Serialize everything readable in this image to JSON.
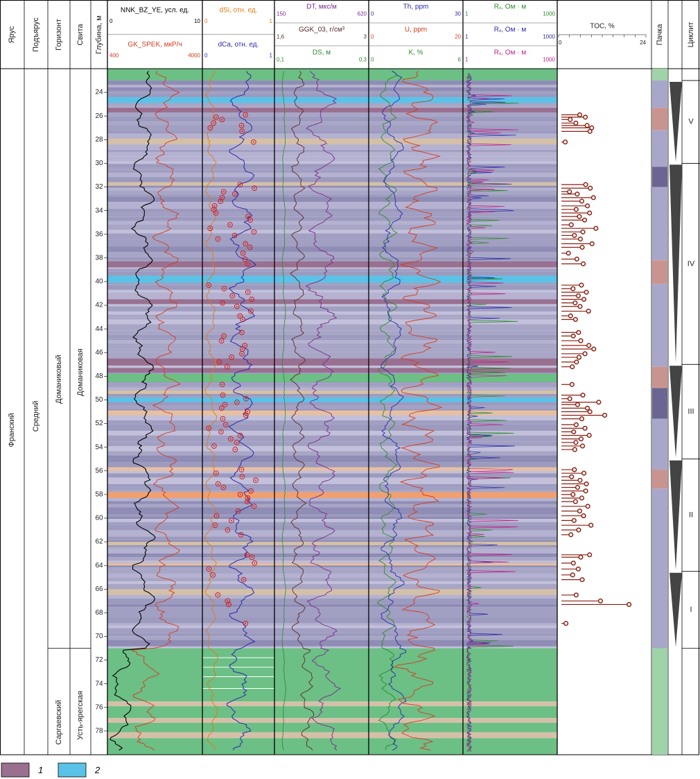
{
  "chart_data": {
    "type": "well-log",
    "depth": {
      "label": "Глубина, м",
      "range": [
        22,
        80
      ],
      "ticks": [
        24,
        26,
        28,
        30,
        32,
        34,
        36,
        38,
        40,
        42,
        44,
        46,
        48,
        50,
        52,
        54,
        56,
        58,
        60,
        62,
        64,
        66,
        68,
        70,
        72,
        74,
        76,
        78
      ]
    },
    "strat": {
      "stage": {
        "header": "Ярус",
        "value": "Франский"
      },
      "substage": {
        "header": "Подъярус",
        "value": "Средний"
      },
      "horizon": {
        "header": "Горизонт",
        "units": [
          {
            "name": "Доманиковый",
            "from": 22,
            "to": 71
          },
          {
            "name": "Саргаевский",
            "from": 71,
            "to": 80
          }
        ]
      },
      "suite": {
        "header": "Свита",
        "units": [
          {
            "name": "Доманиковая",
            "from": 22,
            "to": 71
          },
          {
            "name": "Усть-ярегская",
            "from": 71,
            "to": 80
          }
        ]
      },
      "packs_header": "Пачка",
      "cycles_header": "Циклит",
      "cycles": [
        {
          "name": "V",
          "from": 23,
          "to": 30
        },
        {
          "name": "IV",
          "from": 30,
          "to": 47
        },
        {
          "name": "III",
          "from": 47,
          "to": 55
        },
        {
          "name": "II",
          "from": 55,
          "to": 64.5
        },
        {
          "name": "I",
          "from": 64.5,
          "to": 71
        }
      ]
    },
    "tracks": [
      {
        "name": "gamma",
        "curves": [
          {
            "name": "NNK_BZ_YE, усл. ед.",
            "min": "0",
            "max": "10",
            "color": "#000000"
          },
          {
            "name": "GK_SPEK, мкР/ч",
            "min": "400",
            "max": "4000",
            "color": "#d63a1f"
          }
        ]
      },
      {
        "name": "chemistry",
        "curves": [
          {
            "name": "dSi, отн. ед.",
            "min": "0",
            "max": "1",
            "color": "#e07a10"
          },
          {
            "name": "dCa, отн. ед.",
            "min": "0",
            "max": "1",
            "color": "#2a2aa8"
          }
        ]
      },
      {
        "name": "acoustic",
        "curves": [
          {
            "name": "DT, мкс/м",
            "min": "150",
            "max": "620",
            "color": "#7a2a8a"
          },
          {
            "name": "GGK_03, г/см³",
            "min": "1,6",
            "max": "3",
            "color": "#5a2a2a"
          },
          {
            "name": "DS, м",
            "min": "0,1",
            "max": "0,3",
            "color": "#2a8a2a"
          }
        ]
      },
      {
        "name": "spectral",
        "curves": [
          {
            "name": "Th, ppm",
            "min": "0",
            "max": "30",
            "color": "#2a2aa8"
          },
          {
            "name": "U, ppm",
            "min": "0",
            "max": "20",
            "color": "#d63a1f"
          },
          {
            "name": "K, %",
            "min": "0",
            "max": "6",
            "color": "#2a8a2a"
          }
        ]
      },
      {
        "name": "resistivity",
        "curves": [
          {
            "name": "Rₓ, Ом · м",
            "min": "1",
            "max": "1000",
            "color": "#2a8a2a"
          },
          {
            "name": "Rₓ, Ом · м",
            "min": "1",
            "max": "1000",
            "color": "#2a2aa8"
          },
          {
            "name": "Rₓ, Ом · м",
            "min": "1",
            "max": "1000",
            "color": "#c0208a"
          }
        ]
      }
    ],
    "toc": {
      "label": "TOC, %",
      "min": 0,
      "max": 24,
      "samples": [
        [
          25.9,
          5.2
        ],
        [
          26.1,
          6.8
        ],
        [
          26.3,
          2.5
        ],
        [
          26.6,
          4.1
        ],
        [
          26.8,
          7.3
        ],
        [
          27.0,
          8.6
        ],
        [
          27.3,
          8.1
        ],
        [
          28.2,
          1.1
        ],
        [
          31.8,
          6.9
        ],
        [
          32.1,
          8.2
        ],
        [
          32.4,
          2.3
        ],
        [
          32.6,
          4.5
        ],
        [
          32.9,
          9.1
        ],
        [
          33.2,
          5.8
        ],
        [
          33.6,
          7.4
        ],
        [
          33.9,
          4.2
        ],
        [
          34.2,
          8.0
        ],
        [
          34.5,
          5.1
        ],
        [
          34.8,
          6.6
        ],
        [
          35.2,
          2.8
        ],
        [
          35.5,
          9.8
        ],
        [
          35.8,
          6.1
        ],
        [
          36.1,
          3.7
        ],
        [
          36.4,
          5.4
        ],
        [
          36.8,
          8.7
        ],
        [
          37.1,
          5.9
        ],
        [
          37.6,
          2.0
        ],
        [
          38.1,
          4.4
        ],
        [
          38.5,
          6.2
        ],
        [
          40.3,
          5.7
        ],
        [
          40.6,
          3.3
        ],
        [
          40.9,
          7.1
        ],
        [
          41.2,
          4.8
        ],
        [
          41.5,
          6.4
        ],
        [
          41.8,
          3.9
        ],
        [
          42.1,
          5.3
        ],
        [
          42.5,
          7.7
        ],
        [
          42.9,
          2.6
        ],
        [
          43.2,
          4.0
        ],
        [
          44.3,
          4.9
        ],
        [
          44.6,
          3.4
        ],
        [
          45.0,
          5.5
        ],
        [
          45.4,
          7.8
        ],
        [
          45.7,
          9.2
        ],
        [
          46.1,
          6.7
        ],
        [
          46.4,
          5.0
        ],
        [
          46.8,
          4.3
        ],
        [
          47.2,
          3.1
        ],
        [
          48.7,
          3.0
        ],
        [
          49.6,
          6.1
        ],
        [
          49.9,
          2.4
        ],
        [
          50.2,
          10.6
        ],
        [
          50.4,
          4.6
        ],
        [
          50.7,
          7.4
        ],
        [
          51.0,
          8.1
        ],
        [
          51.3,
          12.3
        ],
        [
          51.6,
          5.8
        ],
        [
          52.1,
          4.2
        ],
        [
          52.4,
          6.7
        ],
        [
          52.7,
          3.5
        ],
        [
          53.0,
          7.9
        ],
        [
          53.3,
          5.6
        ],
        [
          53.6,
          4.1
        ],
        [
          53.9,
          6.0
        ],
        [
          54.2,
          3.8
        ],
        [
          55.9,
          3.7
        ],
        [
          56.2,
          6.4
        ],
        [
          56.5,
          2.9
        ],
        [
          56.8,
          5.3
        ],
        [
          57.1,
          7.1
        ],
        [
          57.4,
          4.6
        ],
        [
          57.7,
          6.9
        ],
        [
          58.0,
          3.3
        ],
        [
          58.3,
          5.8
        ],
        [
          58.6,
          4.0
        ],
        [
          59.0,
          7.5
        ],
        [
          59.4,
          5.2
        ],
        [
          59.8,
          6.3
        ],
        [
          60.2,
          3.6
        ],
        [
          60.6,
          8.4
        ],
        [
          61.0,
          4.9
        ],
        [
          61.4,
          2.7
        ],
        [
          63.1,
          8.0
        ],
        [
          63.3,
          5.5
        ],
        [
          63.8,
          3.4
        ],
        [
          64.3,
          4.8
        ],
        [
          64.8,
          3.2
        ],
        [
          65.2,
          5.9
        ],
        [
          66.5,
          4.2
        ],
        [
          67.0,
          11.1
        ],
        [
          67.3,
          19.2
        ],
        [
          68.9,
          1.3
        ]
      ]
    },
    "legend": [
      {
        "number": "1",
        "color": "#9a7090"
      },
      {
        "number": "2",
        "color": "#5bc2e7"
      }
    ]
  }
}
